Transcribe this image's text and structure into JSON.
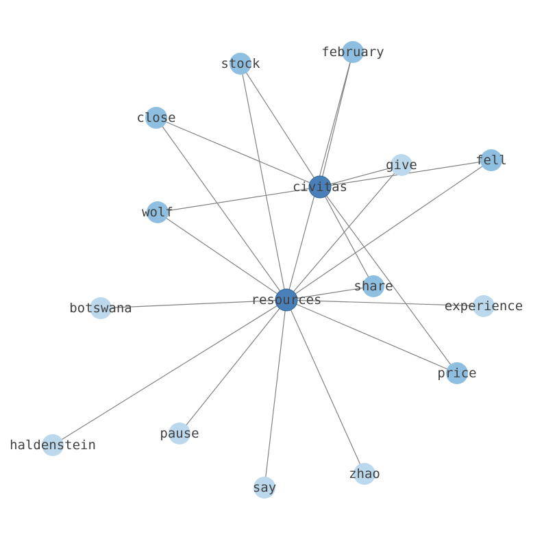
{
  "colors": {
    "edge": "#808080",
    "hub": "#4a80b9",
    "mid": "#8fbfe0",
    "leaf": "#bcd8ec",
    "label": "#404040"
  },
  "nodes": [
    {
      "id": "resources",
      "label": "resources",
      "level": "hub"
    },
    {
      "id": "civitas",
      "label": "civitas",
      "level": "hub"
    },
    {
      "id": "february",
      "label": "february",
      "level": "mid"
    },
    {
      "id": "stock",
      "label": "stock",
      "level": "mid"
    },
    {
      "id": "close",
      "label": "close",
      "level": "mid"
    },
    {
      "id": "wolf",
      "label": "wolf",
      "level": "mid"
    },
    {
      "id": "fell",
      "label": "fell",
      "level": "mid"
    },
    {
      "id": "share",
      "label": "share",
      "level": "mid"
    },
    {
      "id": "price",
      "label": "price",
      "level": "mid"
    },
    {
      "id": "give",
      "label": "give",
      "level": "leaf"
    },
    {
      "id": "experience",
      "label": "experience",
      "level": "leaf"
    },
    {
      "id": "botswana",
      "label": "botswana",
      "level": "leaf"
    },
    {
      "id": "haldenstein",
      "label": "haldenstein",
      "level": "leaf"
    },
    {
      "id": "pause",
      "label": "pause",
      "level": "leaf"
    },
    {
      "id": "say",
      "label": "say",
      "level": "leaf"
    },
    {
      "id": "zhao",
      "label": "zhao",
      "level": "leaf"
    }
  ],
  "edges": [
    [
      "resources",
      "stock"
    ],
    [
      "resources",
      "february"
    ],
    [
      "resources",
      "close"
    ],
    [
      "resources",
      "wolf"
    ],
    [
      "resources",
      "botswana"
    ],
    [
      "resources",
      "haldenstein"
    ],
    [
      "resources",
      "pause"
    ],
    [
      "resources",
      "say"
    ],
    [
      "resources",
      "zhao"
    ],
    [
      "resources",
      "price"
    ],
    [
      "resources",
      "experience"
    ],
    [
      "resources",
      "share"
    ],
    [
      "resources",
      "fell"
    ],
    [
      "resources",
      "give"
    ],
    [
      "civitas",
      "stock"
    ],
    [
      "civitas",
      "close"
    ],
    [
      "civitas",
      "wolf"
    ],
    [
      "civitas",
      "february"
    ],
    [
      "civitas",
      "give"
    ],
    [
      "civitas",
      "fell"
    ],
    [
      "civitas",
      "share"
    ],
    [
      "civitas",
      "price"
    ]
  ]
}
